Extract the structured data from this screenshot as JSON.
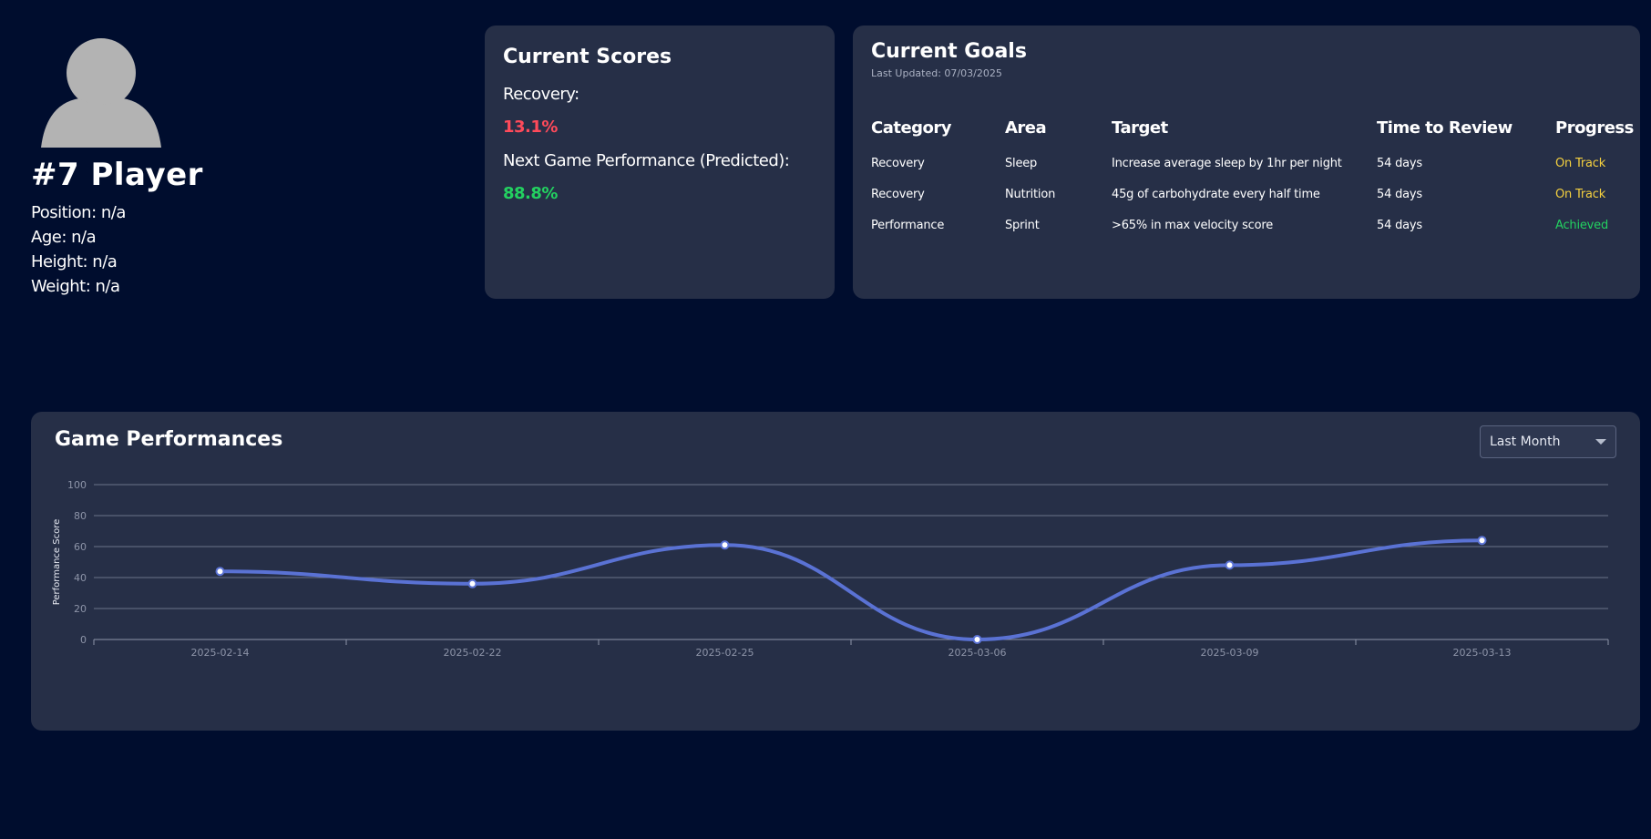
{
  "profile": {
    "avatar_icon": "user-silhouette-icon",
    "name": "#7 Player",
    "position": "Position: n/a",
    "age": "Age: n/a",
    "height": "Height: n/a",
    "weight": "Weight: n/a"
  },
  "scores": {
    "title": "Current Scores",
    "recovery_label": "Recovery:",
    "recovery_value": "13.1%",
    "next_label": "Next Game Performance (Predicted):",
    "next_value": "88.8%"
  },
  "goals": {
    "title": "Current Goals",
    "last_updated": "Last Updated: 07/03/2025",
    "headers": [
      "Category",
      "Area",
      "Target",
      "Time to Review",
      "Progress"
    ],
    "rows": [
      {
        "category": "Recovery",
        "area": "Sleep",
        "target": "Increase average sleep by 1hr per night",
        "review": "54 days",
        "progress": "On Track",
        "status": "on-track"
      },
      {
        "category": "Recovery",
        "area": "Nutrition",
        "target": "45g of carbohydrate every half time",
        "review": "54 days",
        "progress": "On Track",
        "status": "on-track"
      },
      {
        "category": "Performance",
        "area": "Sprint",
        "target": ">65% in max velocity score",
        "review": "54 days",
        "progress": "Achieved",
        "status": "achieved"
      }
    ]
  },
  "performance": {
    "title": "Game Performances",
    "range_selected": "Last Month"
  },
  "colors": {
    "line": "#5a72d4",
    "on_track": "#f4d03f",
    "achieved": "#23d160",
    "recovery": "#ff4a5a"
  },
  "chart_data": {
    "type": "line",
    "categories": [
      "2025-02-14",
      "2025-02-22",
      "2025-02-25",
      "2025-03-06",
      "2025-03-09",
      "2025-03-13"
    ],
    "values": [
      44,
      36,
      61,
      0,
      48,
      64
    ],
    "ylabel": "Performance Score",
    "ylim": [
      0,
      100
    ],
    "yticks": [
      0,
      20,
      40,
      60,
      80,
      100
    ],
    "grid": true,
    "smooth": true
  }
}
